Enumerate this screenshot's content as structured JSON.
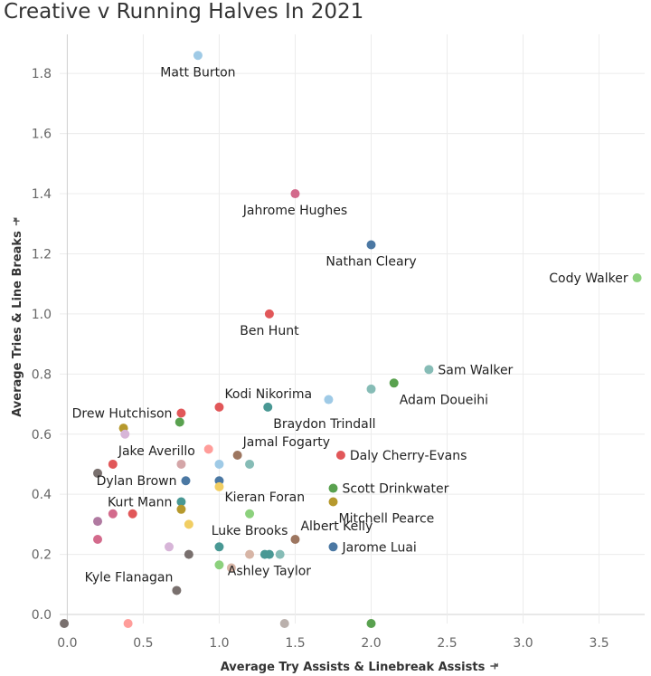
{
  "title": "Creative v Running Halves In 2021",
  "colors": {
    "blue_light": "#9fcae6",
    "pink": "#d36a8c",
    "navy": "#4b78a3",
    "green": "#59a14f",
    "red": "#e15759",
    "teal_light": "#86bcb6",
    "teal": "#499894",
    "gold": "#b6992d",
    "brown": "#9d7660",
    "grey_dark": "#79706e",
    "salmon": "#ff9d9a",
    "tan": "#d4a6a8",
    "yellow": "#f1ce63",
    "green_light": "#8cd17d",
    "mauve": "#b07aa1",
    "lilac": "#d7b5d8",
    "beige": "#d7b5a6",
    "grey": "#bab0ac"
  },
  "chart_data": {
    "type": "scatter",
    "title": "Creative v Running Halves In 2021",
    "xlabel": "Average Try Assists & Linebreak Assists",
    "ylabel": "Average Tries & Line Breaks",
    "xlim": [
      -0.05,
      3.8
    ],
    "ylim": [
      -0.03,
      1.93
    ],
    "x_ticks": [
      "0.0",
      "0.5",
      "1.0",
      "1.5",
      "2.0",
      "2.5",
      "3.0",
      "3.5"
    ],
    "x_tick_values": [
      0,
      0.5,
      1.0,
      1.5,
      2.0,
      2.5,
      3.0,
      3.5
    ],
    "y_ticks": [
      "0.0",
      "0.2",
      "0.4",
      "0.6",
      "0.8",
      "1.0",
      "1.2",
      "1.4",
      "1.6",
      "1.8"
    ],
    "y_tick_values": [
      0,
      0.2,
      0.4,
      0.6,
      0.8,
      1.0,
      1.2,
      1.4,
      1.6,
      1.8
    ],
    "grid": true,
    "points": [
      {
        "label": "Matt Burton",
        "x": 0.86,
        "y": 1.86,
        "color": "blue_light",
        "label_pos": "below"
      },
      {
        "label": "Jahrome Hughes",
        "x": 1.5,
        "y": 1.4,
        "color": "pink",
        "label_pos": "below"
      },
      {
        "label": "Nathan Cleary",
        "x": 2.0,
        "y": 1.23,
        "color": "navy",
        "label_pos": "below"
      },
      {
        "label": "Cody Walker",
        "x": 3.75,
        "y": 1.12,
        "color": "green_light",
        "label_pos": "left"
      },
      {
        "label": "Ben Hunt",
        "x": 1.33,
        "y": 1.0,
        "color": "red",
        "label_pos": "below"
      },
      {
        "label": "Sam Walker",
        "x": 2.38,
        "y": 0.815,
        "color": "teal_light",
        "label_pos": "right"
      },
      {
        "label": "Adam Doueihi",
        "x": 2.15,
        "y": 0.77,
        "color": "green",
        "label_pos": "below-right"
      },
      {
        "label": "",
        "x": 2.0,
        "y": 0.75,
        "color": "teal_light"
      },
      {
        "label": "",
        "x": 1.72,
        "y": 0.715,
        "color": "blue_light"
      },
      {
        "label": "Kodi Nikorima",
        "x": 1.0,
        "y": 0.69,
        "color": "red",
        "label_pos": "above-right"
      },
      {
        "label": "Braydon Trindall",
        "x": 1.32,
        "y": 0.69,
        "color": "teal",
        "label_pos": "below-right"
      },
      {
        "label": "Drew Hutchison",
        "x": 0.75,
        "y": 0.67,
        "color": "red",
        "label_pos": "left"
      },
      {
        "label": "",
        "x": 0.74,
        "y": 0.64,
        "color": "green"
      },
      {
        "label": "",
        "x": 0.37,
        "y": 0.62,
        "color": "gold"
      },
      {
        "label": "",
        "x": 0.38,
        "y": 0.6,
        "color": "lilac"
      },
      {
        "label": "Jamal Fogarty",
        "x": 1.12,
        "y": 0.53,
        "color": "brown",
        "label_pos": "above-right"
      },
      {
        "label": "",
        "x": 0.93,
        "y": 0.55,
        "color": "salmon"
      },
      {
        "label": "Daly Cherry-Evans",
        "x": 1.8,
        "y": 0.53,
        "color": "red",
        "label_pos": "right"
      },
      {
        "label": "Jake Averillo",
        "x": 0.3,
        "y": 0.5,
        "color": "red",
        "label_pos": "above-right"
      },
      {
        "label": "",
        "x": 0.75,
        "y": 0.5,
        "color": "tan"
      },
      {
        "label": "",
        "x": 1.0,
        "y": 0.5,
        "color": "blue_light"
      },
      {
        "label": "",
        "x": 1.2,
        "y": 0.5,
        "color": "teal_light"
      },
      {
        "label": "",
        "x": 0.2,
        "y": 0.47,
        "color": "grey_dark"
      },
      {
        "label": "Dylan Brown",
        "x": 0.78,
        "y": 0.445,
        "color": "navy",
        "label_pos": "left"
      },
      {
        "label": "Kieran Foran",
        "x": 1.0,
        "y": 0.445,
        "color": "navy",
        "label_pos": "below-right"
      },
      {
        "label": "",
        "x": 1.0,
        "y": 0.425,
        "color": "yellow"
      },
      {
        "label": "Scott Drinkwater",
        "x": 1.75,
        "y": 0.42,
        "color": "green",
        "label_pos": "right"
      },
      {
        "label": "Kurt Mann",
        "x": 0.75,
        "y": 0.375,
        "color": "teal",
        "label_pos": "left"
      },
      {
        "label": "",
        "x": 0.75,
        "y": 0.35,
        "color": "gold"
      },
      {
        "label": "Mitchell Pearce",
        "x": 1.75,
        "y": 0.375,
        "color": "gold",
        "label_pos": "below-right"
      },
      {
        "label": "",
        "x": 0.3,
        "y": 0.335,
        "color": "pink"
      },
      {
        "label": "",
        "x": 0.43,
        "y": 0.335,
        "color": "red"
      },
      {
        "label": "",
        "x": 0.2,
        "y": 0.31,
        "color": "mauve"
      },
      {
        "label": "",
        "x": 0.8,
        "y": 0.3,
        "color": "yellow"
      },
      {
        "label": "Luke Brooks",
        "x": 1.2,
        "y": 0.335,
        "color": "green_light",
        "label_pos": "below"
      },
      {
        "label": "Albert Kelly",
        "x": 1.5,
        "y": 0.25,
        "color": "brown",
        "label_pos": "above-right"
      },
      {
        "label": "",
        "x": 0.2,
        "y": 0.25,
        "color": "pink"
      },
      {
        "label": "",
        "x": 0.67,
        "y": 0.225,
        "color": "lilac"
      },
      {
        "label": "",
        "x": 1.0,
        "y": 0.225,
        "color": "teal"
      },
      {
        "label": "Jarome Luai",
        "x": 1.75,
        "y": 0.225,
        "color": "navy",
        "label_pos": "right"
      },
      {
        "label": "",
        "x": 0.8,
        "y": 0.2,
        "color": "grey_dark"
      },
      {
        "label": "",
        "x": 1.2,
        "y": 0.2,
        "color": "beige"
      },
      {
        "label": "",
        "x": 1.3,
        "y": 0.2,
        "color": "teal"
      },
      {
        "label": "",
        "x": 1.4,
        "y": 0.2,
        "color": "teal_light"
      },
      {
        "label": "Ashley Taylor",
        "x": 1.33,
        "y": 0.2,
        "color": "teal",
        "label_pos": "below"
      },
      {
        "label": "",
        "x": 1.0,
        "y": 0.165,
        "color": "green_light"
      },
      {
        "label": "",
        "x": 1.08,
        "y": 0.155,
        "color": "beige"
      },
      {
        "label": "Kyle Flanagan",
        "x": 0.72,
        "y": 0.08,
        "color": "grey_dark",
        "label_pos": "above-left"
      },
      {
        "label": "",
        "x": -0.02,
        "y": -0.03,
        "color": "grey_dark"
      },
      {
        "label": "",
        "x": 0.4,
        "y": -0.03,
        "color": "salmon"
      },
      {
        "label": "",
        "x": 1.43,
        "y": -0.03,
        "color": "grey"
      },
      {
        "label": "",
        "x": 2.0,
        "y": -0.03,
        "color": "green"
      }
    ]
  }
}
